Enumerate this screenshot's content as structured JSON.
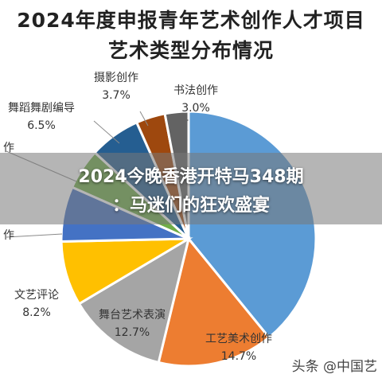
{
  "header": {
    "title_line1": "2024年度申报青年艺术创作人才项目",
    "title_line2": "艺术类型分布情况"
  },
  "overlay": {
    "line1": "2024今晚香港开特马348期",
    "line2": "：马迷们的狂欢盛宴"
  },
  "watermark": "头条 @中国艺",
  "chart_data": {
    "type": "pie",
    "title": "2024年度申报青年艺术创作人才项目艺术类型分布情况",
    "categories": [
      "书法创作",
      "工艺美术创作",
      "舞台艺术表演",
      "文艺评论",
      "作",
      "作",
      "舞蹈舞剧编导",
      "摄影创作"
    ],
    "values": [
      null,
      14.7,
      12.7,
      8.2,
      null,
      null,
      6.5,
      3.7
    ],
    "labels": [
      {
        "name": "书法创作",
        "value": "3.0%"
      },
      {
        "name": "工艺美术创作",
        "value": "14.7%"
      },
      {
        "name": "舞台艺术表演",
        "value": "12.7%"
      },
      {
        "name": "文艺评论",
        "value": "8.2%"
      },
      {
        "name": "作",
        "value": ""
      },
      {
        "name": "作",
        "value": ""
      },
      {
        "name": "舞蹈舞剧编导",
        "value": "6.5%"
      },
      {
        "name": "摄影创作",
        "value": "3.7%"
      }
    ],
    "slices": [
      {
        "name": "",
        "value": 39.2,
        "color": "#5b9bd5"
      },
      {
        "name": "工艺美术创作",
        "value": 14.7,
        "color": "#ed7d31"
      },
      {
        "name": "舞台艺术表演",
        "value": 12.7,
        "color": "#a5a5a5"
      },
      {
        "name": "文艺评论",
        "value": 8.2,
        "color": "#ffc000"
      },
      {
        "name": "",
        "value": 7.0,
        "color": "#4472c4"
      },
      {
        "name": "",
        "value": 5.2,
        "color": "#70ad47"
      },
      {
        "name": "舞蹈舞剧编导",
        "value": 6.5,
        "color": "#255e91"
      },
      {
        "name": "摄影创作",
        "value": 3.7,
        "color": "#9e480e"
      },
      {
        "name": "书法创作",
        "value": 3.0,
        "color": "#636363"
      }
    ],
    "legend": "none"
  }
}
